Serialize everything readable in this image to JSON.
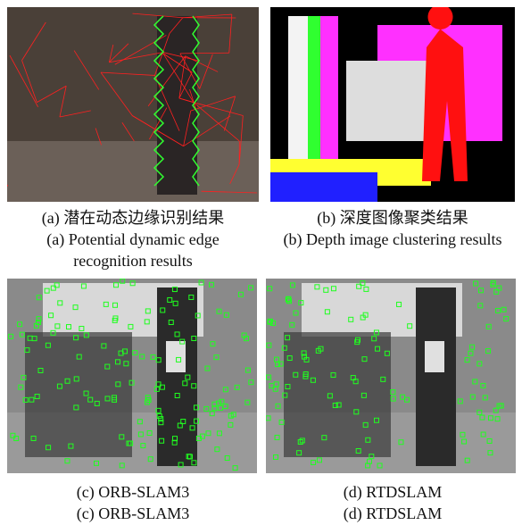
{
  "panels": [
    {
      "caption_cn": "(a) 潜在动态边缘识别结果",
      "caption_en": "(a) Potential dynamic edge recognition results"
    },
    {
      "caption_cn": "(b) 深度图像聚类结果",
      "caption_en": "(b) Depth image clustering results"
    },
    {
      "caption_cn": "(c) ORB-SLAM3",
      "caption_en": "(c) ORB-SLAM3"
    },
    {
      "caption_cn": "(d) RTDSLAM",
      "caption_en": "(d) RTDSLAM"
    }
  ]
}
